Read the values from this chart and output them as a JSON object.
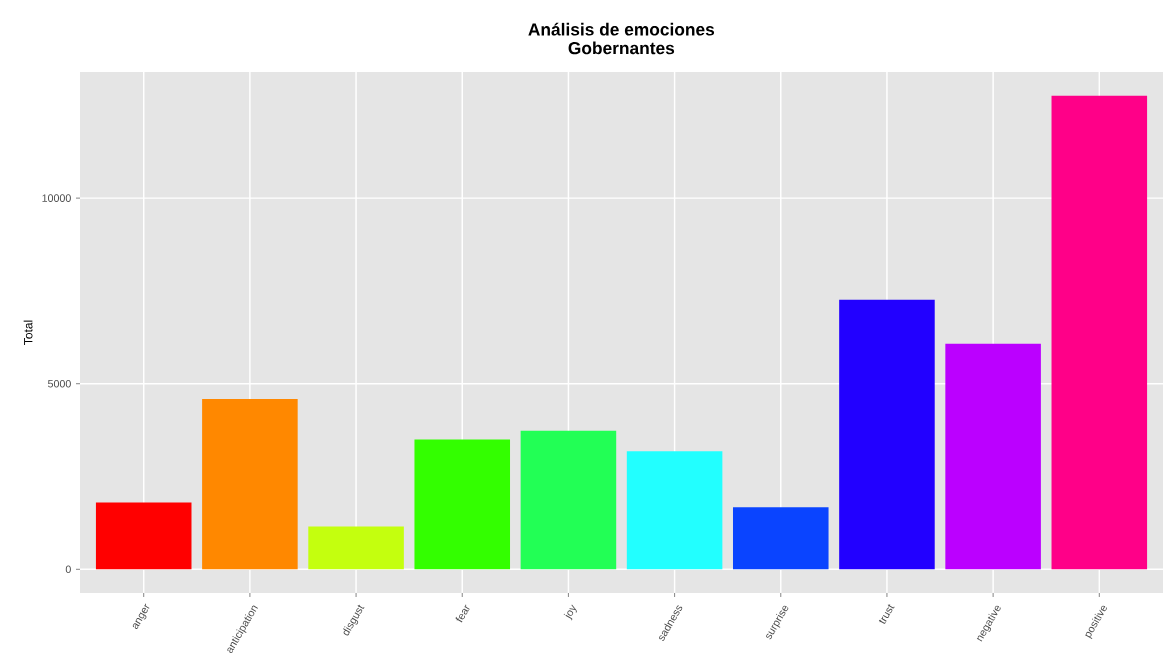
{
  "chart_data": {
    "type": "bar",
    "title": "Análisis de emociones",
    "subtitle": "Gobernantes",
    "ylabel": "Total",
    "categories": [
      "anger",
      "anticipation",
      "disgust",
      "fear",
      "joy",
      "sadness",
      "surprise",
      "trust",
      "negative",
      "positive"
    ],
    "values": [
      1800,
      4590,
      1150,
      3500,
      3730,
      3180,
      1670,
      7260,
      6080,
      12760
    ],
    "colors": [
      "#ff0000",
      "#ff8800",
      "#c4ff0e",
      "#33ff00",
      "#22ff55",
      "#22ffff",
      "#0a44ff",
      "#2200ff",
      "#bb00ff",
      "#ff0088"
    ],
    "ylim": [
      -638,
      13398
    ],
    "yticks": [
      0,
      5000,
      10000
    ],
    "grid": true
  }
}
